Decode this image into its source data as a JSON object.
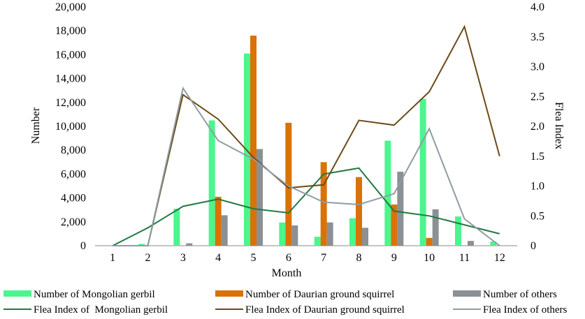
{
  "chart_data": {
    "type": "bar",
    "categories": [
      "1",
      "2",
      "3",
      "4",
      "5",
      "6",
      "7",
      "8",
      "9",
      "10",
      "11",
      "12"
    ],
    "xlabel": "Month",
    "ylabel": "Number",
    "y2label": "Flea Index",
    "ylim": [
      0,
      20000
    ],
    "y2lim": [
      0,
      4.0
    ],
    "yticks": [
      "0",
      "2,000",
      "4,000",
      "6,000",
      "8,000",
      "10,000",
      "12,000",
      "14,000",
      "16,000",
      "18,000",
      "20,000"
    ],
    "y2ticks": [
      "0",
      "0.5",
      "1.0",
      "1.5",
      "2.0",
      "2.5",
      "3.0",
      "3.5",
      "4.0"
    ],
    "bar_series": [
      {
        "name": "Number of Mongolian gerbil",
        "color": "#4cf58e",
        "values": [
          0,
          150,
          3100,
          10500,
          16100,
          1950,
          750,
          2300,
          8800,
          12300,
          2450,
          350
        ]
      },
      {
        "name": "Number of Daurian ground squirrel",
        "color": "#d97208",
        "values": [
          0,
          0,
          0,
          4100,
          17600,
          10300,
          7000,
          5750,
          3450,
          650,
          0,
          0
        ]
      },
      {
        "name": "Number of others",
        "color": "#8b9095",
        "values": [
          0,
          0,
          200,
          2550,
          8100,
          1700,
          1950,
          1500,
          6200,
          3050,
          400,
          0
        ]
      }
    ],
    "line_series": [
      {
        "name": "Flea Index of  Mongolian gerbil",
        "color": "#1e7a41",
        "values": [
          0,
          0.3,
          0.66,
          0.78,
          0.62,
          0.55,
          1.2,
          1.3,
          0.58,
          0.5,
          0.35,
          0.2
        ]
      },
      {
        "name": "Flea Index of Daurian ground squirrel",
        "color": "#6b4a16",
        "values": [
          0,
          0,
          2.53,
          2.12,
          1.48,
          0.97,
          1.02,
          2.1,
          2.02,
          2.58,
          3.67,
          1.5
        ]
      },
      {
        "name": "Flea Index of others",
        "color": "#8f9ca4",
        "values": [
          0,
          0,
          2.64,
          1.76,
          1.45,
          1.0,
          0.73,
          0.69,
          0.87,
          1.96,
          0.45,
          0
        ]
      }
    ]
  }
}
